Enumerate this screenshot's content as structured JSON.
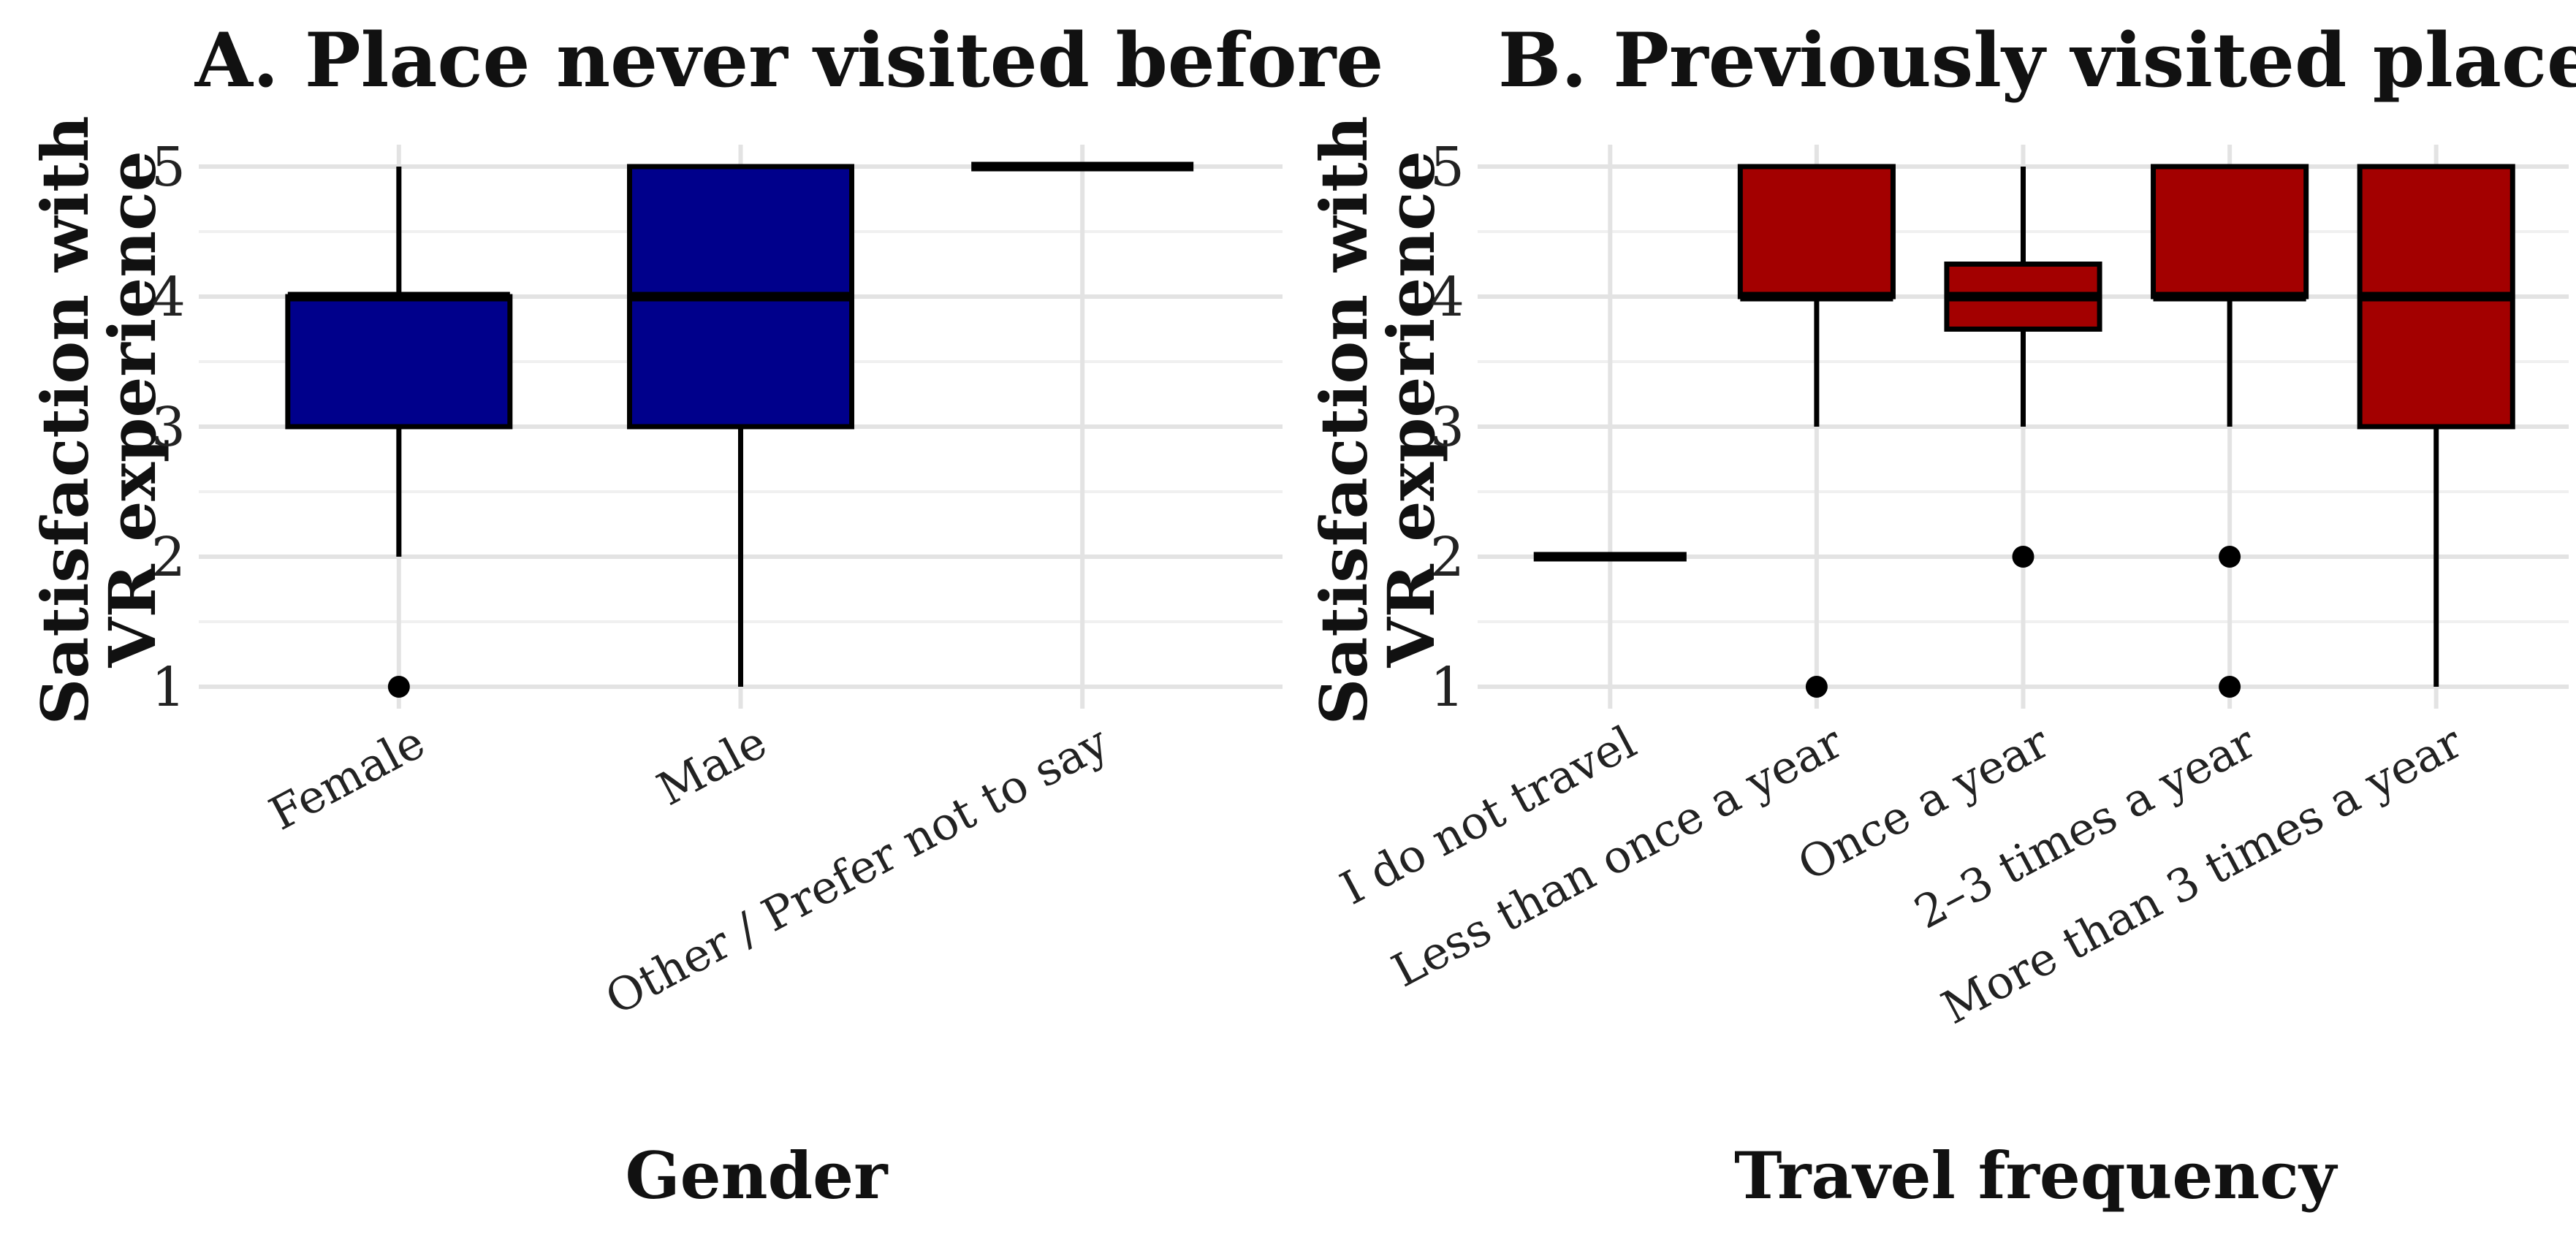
{
  "chart_data": [
    {
      "type": "box",
      "title": "A. Place never visited before",
      "xlabel": "Gender",
      "ylabel": "Satisfaction with\nVR experience",
      "ylim": [
        1,
        5
      ],
      "yticks": [
        1,
        2,
        3,
        4,
        5
      ],
      "grid": true,
      "fill_color": "#00008B",
      "categories": [
        "Female",
        "Male",
        "Other / Prefer not to say"
      ],
      "boxes": [
        {
          "category": "Female",
          "whisker_low": 2,
          "q1": 3,
          "median": 4,
          "q3": 4,
          "whisker_high": 5,
          "outliers": [
            1
          ]
        },
        {
          "category": "Male",
          "whisker_low": 1,
          "q1": 3,
          "median": 4,
          "q3": 5,
          "whisker_high": 5,
          "outliers": []
        },
        {
          "category": "Other / Prefer not to say",
          "whisker_low": 5,
          "q1": 5,
          "median": 5,
          "q3": 5,
          "whisker_high": 5,
          "outliers": []
        }
      ]
    },
    {
      "type": "box",
      "title": "B. Previously visited place",
      "xlabel": "Travel frequency",
      "ylabel": "Satisfaction with\nVR experience",
      "ylim": [
        1,
        5
      ],
      "yticks": [
        1,
        2,
        3,
        4,
        5
      ],
      "grid": true,
      "fill_color": "#A30000",
      "categories": [
        "I do not travel",
        "Less than once a year",
        "Once a year",
        "2–3 times a year",
        "More than 3 times a year"
      ],
      "boxes": [
        {
          "category": "I do not travel",
          "whisker_low": 2,
          "q1": 2,
          "median": 2,
          "q3": 2,
          "whisker_high": 2,
          "outliers": []
        },
        {
          "category": "Less than once a year",
          "whisker_low": 3,
          "q1": 4,
          "median": 4,
          "q3": 5,
          "whisker_high": 5,
          "outliers": [
            1
          ]
        },
        {
          "category": "Once a year",
          "whisker_low": 3,
          "q1": 3.75,
          "median": 4,
          "q3": 4.25,
          "whisker_high": 5,
          "outliers": [
            2
          ]
        },
        {
          "category": "2–3 times a year",
          "whisker_low": 3,
          "q1": 4,
          "median": 4,
          "q3": 5,
          "whisker_high": 5,
          "outliers": [
            2,
            1
          ]
        },
        {
          "category": "More than 3 times a year",
          "whisker_low": 1,
          "q1": 3,
          "median": 4,
          "q3": 5,
          "whisker_high": 5,
          "outliers": []
        }
      ]
    }
  ]
}
